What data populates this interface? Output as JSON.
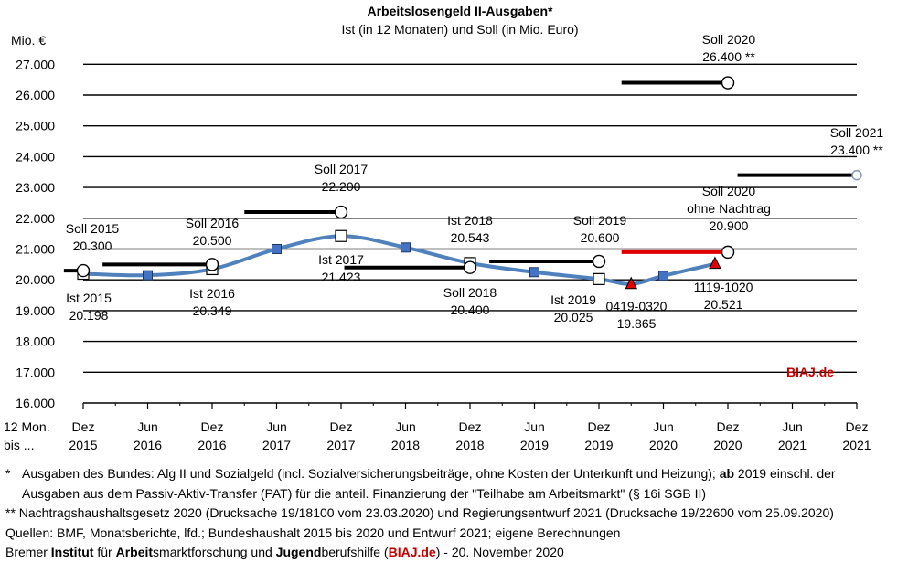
{
  "chart_data": {
    "type": "line",
    "title": "Arbeitslosengeld II-Ausgaben*",
    "subtitle": "Ist (in 12 Monaten) und Soll (in Mio. Euro)",
    "y_unit_label": "Mio. €",
    "x_axis_prefix": [
      "12 Mon.",
      "bis ..."
    ],
    "ylim": [
      16000,
      27000
    ],
    "yticks": [
      "16.000",
      "17.000",
      "18.000",
      "19.000",
      "20.000",
      "21.000",
      "22.000",
      "23.000",
      "24.000",
      "25.000",
      "26.000",
      "27.000"
    ],
    "xticks": [
      {
        "m": "Dez",
        "y": "2015"
      },
      {
        "m": "Jun",
        "y": "2016"
      },
      {
        "m": "Dez",
        "y": "2016"
      },
      {
        "m": "Jun",
        "y": "2017"
      },
      {
        "m": "Dez",
        "y": "2017"
      },
      {
        "m": "Jun",
        "y": "2018"
      },
      {
        "m": "Dez",
        "y": "2018"
      },
      {
        "m": "Jun",
        "y": "2019"
      },
      {
        "m": "Dez",
        "y": "2019"
      },
      {
        "m": "Jun",
        "y": "2020"
      },
      {
        "m": "Dez",
        "y": "2020"
      },
      {
        "m": "Jun",
        "y": "2021"
      },
      {
        "m": "Dez",
        "y": "2021"
      }
    ],
    "ist_series": {
      "name": "Ist (in 12 Monaten)",
      "x": [
        0,
        1,
        2,
        3,
        4,
        5,
        6,
        7,
        8,
        9
      ],
      "values": [
        20198,
        20150,
        20349,
        21000,
        21423,
        21050,
        20543,
        20250,
        20025,
        20130
      ]
    },
    "ist_curve_extension": {
      "x": [
        8,
        8.5,
        9,
        9.8
      ],
      "values": [
        20025,
        19865,
        20130,
        20521
      ]
    },
    "soll_lines": [
      {
        "label": "Soll 2015",
        "value": 20300,
        "x_from": -0.3,
        "x_to": 0,
        "color": "#000000"
      },
      {
        "label": "Soll 2016",
        "value": 20500,
        "x_from": 0.3,
        "x_to": 2,
        "color": "#000000"
      },
      {
        "label": "Soll 2017",
        "value": 22200,
        "x_from": 2.5,
        "x_to": 4,
        "color": "#000000"
      },
      {
        "label": "Soll 2018",
        "value": 20400,
        "x_from": 4.05,
        "x_to": 6,
        "color": "#000000"
      },
      {
        "label": "Soll 2019",
        "value": 20600,
        "x_from": 6.3,
        "x_to": 8,
        "color": "#000000"
      },
      {
        "label": "Soll 2020",
        "value": 26400,
        "x_from": 8.35,
        "x_to": 10,
        "color": "#000000"
      },
      {
        "label": "Soll 2020 ohne Nachtrag",
        "value": 20900,
        "x_from": 8.35,
        "x_to": 10,
        "color": "#e00000"
      },
      {
        "label": "Soll 2021",
        "value": 23400,
        "x_from": 10.15,
        "x_to": 12,
        "color": "#000000"
      }
    ],
    "ist_markers": [
      {
        "x": 0,
        "value": 20198
      },
      {
        "x": 2,
        "value": 20349
      },
      {
        "x": 4,
        "value": 21423
      },
      {
        "x": 6,
        "value": 20543
      },
      {
        "x": 8,
        "value": 20025
      }
    ],
    "triangles": [
      {
        "label": "0419-0320",
        "x": 8.5,
        "value": 19865
      },
      {
        "label": "1119-1020",
        "x": 9.8,
        "value": 20521
      }
    ],
    "annotations": [
      {
        "id": "soll2015",
        "lines": [
          "Soll 2015",
          "20.300"
        ]
      },
      {
        "id": "ist2015",
        "lines": [
          "Ist 2015",
          "20.198"
        ]
      },
      {
        "id": "soll2016",
        "lines": [
          "Soll 2016",
          "20.500"
        ]
      },
      {
        "id": "ist2016",
        "lines": [
          "Ist 2016",
          "20.349"
        ]
      },
      {
        "id": "soll2017",
        "lines": [
          "Soll 2017",
          "22.200"
        ]
      },
      {
        "id": "ist2017",
        "lines": [
          "Ist 2017",
          "21.423"
        ]
      },
      {
        "id": "ist2018",
        "lines": [
          "Ist 2018",
          "20.543"
        ]
      },
      {
        "id": "soll2018",
        "lines": [
          "Soll 2018",
          "20.400"
        ]
      },
      {
        "id": "soll2019",
        "lines": [
          "Soll 2019",
          "20.600"
        ]
      },
      {
        "id": "ist2019",
        "lines": [
          "Ist 2019",
          "20.025"
        ]
      },
      {
        "id": "tri1",
        "lines": [
          "0419-0320",
          "19.865"
        ]
      },
      {
        "id": "tri2",
        "lines": [
          "1119-1020",
          "20.521"
        ]
      },
      {
        "id": "soll2020",
        "lines": [
          "Soll 2020",
          "26.400 **"
        ]
      },
      {
        "id": "soll2020on",
        "lines": [
          "Soll 2020",
          "ohne Nachtrag",
          "20.900"
        ]
      },
      {
        "id": "soll2021",
        "lines": [
          "Soll 2021",
          "23.400 **"
        ]
      }
    ],
    "watermark": "BIAJ.de",
    "colors": {
      "ist_line": "#4f81bd",
      "marker_fill": "#4472c4",
      "triangle": "#e00000",
      "soll": "#000000",
      "soll_red": "#e00000"
    }
  },
  "footnotes": {
    "n1_star": "*",
    "n1_a": "Ausgaben des Bundes: Alg II und Sozialgeld (incl. Sozialversicherungsbeiträge, ohne Kosten der Unterkunft und Heizung); ",
    "n1_b": "ab",
    "n1_c": " 2019 einschl. der",
    "n1_d": "Ausgaben aus dem Passiv-Aktiv-Transfer (PAT) für die anteil. Finanzierung der \"Teilhabe am Arbeitsmarkt\" (§ 16i SGB II)",
    "n2": "** Nachtragshaushaltsgesetz 2020 (Drucksache 19/18100 vom 23.03.2020) und Regierungsentwurf 2021 (Drucksache 19/22600 vom 25.09.2020)",
    "n3": "Quellen: BMF, Monatsberichte, lfd.; Bundeshaushalt 2015 bis 2020 und Entwurf 2021; eigene Berechnungen",
    "n4_a": "Bremer ",
    "n4_b": "Institut",
    "n4_c": " für ",
    "n4_d": "Arbeit",
    "n4_e": "smarktforschung und ",
    "n4_f": "Jugend",
    "n4_g": "berufshilfe (",
    "n4_h": "BIAJ.de",
    "n4_i": ") - 20. November 2020"
  }
}
